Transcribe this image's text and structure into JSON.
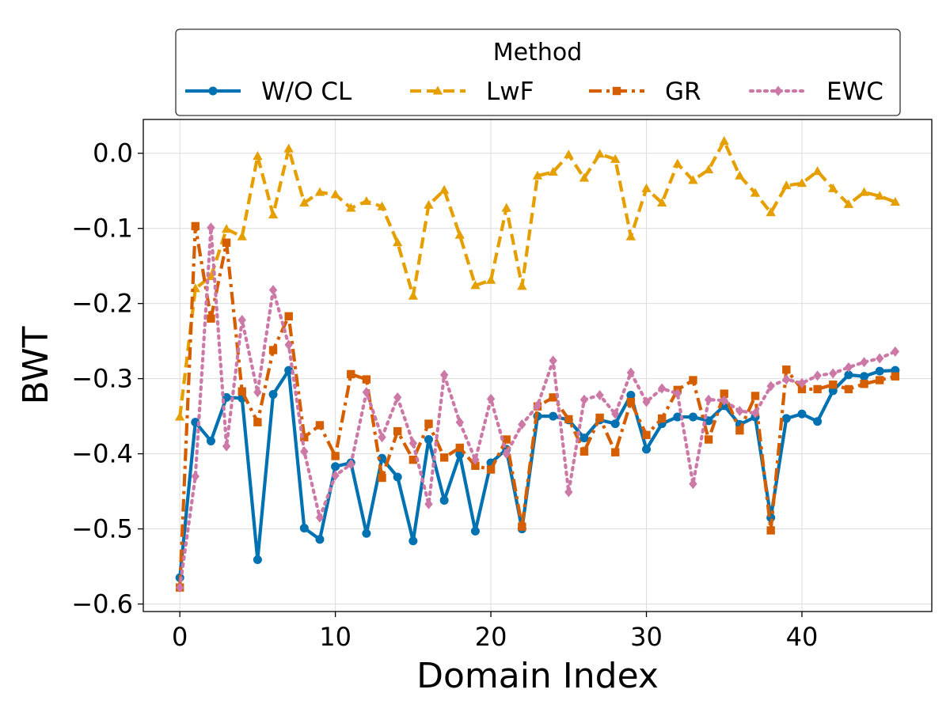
{
  "chart_data": {
    "type": "line",
    "title": "",
    "xlabel": "Domain Index",
    "ylabel": "BWT",
    "xlim": [
      -2.35,
      48.35
    ],
    "ylim": [
      -0.61,
      0.045
    ],
    "x_ticks": [
      0,
      10,
      20,
      30,
      40
    ],
    "y_ticks": [
      -0.6,
      -0.5,
      -0.4,
      -0.3,
      -0.2,
      -0.1,
      0.0
    ],
    "x_tick_labels": [
      "0",
      "10",
      "20",
      "30",
      "40"
    ],
    "y_tick_labels": [
      "−0.6",
      "−0.5",
      "−0.4",
      "−0.3",
      "−0.2",
      "−0.1",
      "0.0"
    ],
    "grid": true,
    "legend": {
      "title": "Method",
      "placement": "top, above plot, 4 columns"
    },
    "x": [
      0,
      1,
      2,
      3,
      4,
      5,
      6,
      7,
      8,
      9,
      10,
      11,
      12,
      13,
      14,
      15,
      16,
      17,
      18,
      19,
      20,
      21,
      22,
      23,
      24,
      25,
      26,
      27,
      28,
      29,
      30,
      31,
      32,
      33,
      34,
      35,
      36,
      37,
      38,
      39,
      40,
      41,
      42,
      43,
      44,
      45,
      46
    ],
    "series": [
      {
        "name": "W/O CL",
        "color": "#0072b2",
        "linestyle": "solid",
        "marker": "circle",
        "values": [
          -0.565,
          -0.358,
          -0.383,
          -0.325,
          -0.326,
          -0.541,
          -0.321,
          -0.289,
          -0.499,
          -0.514,
          -0.417,
          -0.412,
          -0.506,
          -0.406,
          -0.431,
          -0.516,
          -0.381,
          -0.462,
          -0.401,
          -0.503,
          -0.412,
          -0.394,
          -0.5,
          -0.35,
          -0.35,
          -0.355,
          -0.379,
          -0.355,
          -0.36,
          -0.322,
          -0.394,
          -0.36,
          -0.351,
          -0.351,
          -0.356,
          -0.336,
          -0.361,
          -0.351,
          -0.485,
          -0.353,
          -0.347,
          -0.357,
          -0.316,
          -0.295,
          -0.297,
          -0.29,
          -0.289
        ]
      },
      {
        "name": "LwF",
        "color": "#e69f00",
        "linestyle": "dashed",
        "marker": "triangle",
        "values": [
          -0.351,
          -0.18,
          -0.164,
          -0.101,
          -0.111,
          -0.004,
          -0.082,
          0.006,
          -0.066,
          -0.052,
          -0.055,
          -0.073,
          -0.064,
          -0.071,
          -0.119,
          -0.19,
          -0.069,
          -0.049,
          -0.109,
          -0.176,
          -0.169,
          -0.073,
          -0.177,
          -0.03,
          -0.025,
          -0.002,
          -0.033,
          -0.001,
          -0.008,
          -0.111,
          -0.047,
          -0.066,
          -0.014,
          -0.036,
          -0.022,
          0.016,
          -0.03,
          -0.053,
          -0.079,
          -0.043,
          -0.04,
          -0.024,
          -0.047,
          -0.068,
          -0.052,
          -0.057,
          -0.065
        ]
      },
      {
        "name": "GR",
        "color": "#d55e00",
        "linestyle": "dashdot",
        "marker": "square",
        "values": [
          -0.578,
          -0.097,
          -0.22,
          -0.119,
          -0.317,
          -0.358,
          -0.262,
          -0.217,
          -0.378,
          -0.362,
          -0.403,
          -0.294,
          -0.301,
          -0.432,
          -0.37,
          -0.408,
          -0.36,
          -0.405,
          -0.392,
          -0.416,
          -0.421,
          -0.381,
          -0.497,
          -0.337,
          -0.325,
          -0.354,
          -0.397,
          -0.352,
          -0.398,
          -0.331,
          -0.375,
          -0.353,
          -0.315,
          -0.302,
          -0.381,
          -0.32,
          -0.369,
          -0.323,
          -0.502,
          -0.288,
          -0.314,
          -0.314,
          -0.308,
          -0.314,
          -0.307,
          -0.302,
          -0.297
        ]
      },
      {
        "name": "EWC",
        "color": "#cc79a7",
        "linestyle": "dotted",
        "marker": "diamond",
        "values": [
          -0.578,
          -0.43,
          -0.099,
          -0.39,
          -0.222,
          -0.318,
          -0.182,
          -0.255,
          -0.397,
          -0.485,
          -0.429,
          -0.414,
          -0.318,
          -0.378,
          -0.325,
          -0.386,
          -0.467,
          -0.295,
          -0.358,
          -0.408,
          -0.327,
          -0.4,
          -0.361,
          -0.336,
          -0.276,
          -0.451,
          -0.328,
          -0.322,
          -0.347,
          -0.292,
          -0.331,
          -0.313,
          -0.32,
          -0.44,
          -0.328,
          -0.329,
          -0.343,
          -0.346,
          -0.31,
          -0.301,
          -0.306,
          -0.296,
          -0.293,
          -0.285,
          -0.278,
          -0.273,
          -0.264
        ]
      }
    ]
  }
}
